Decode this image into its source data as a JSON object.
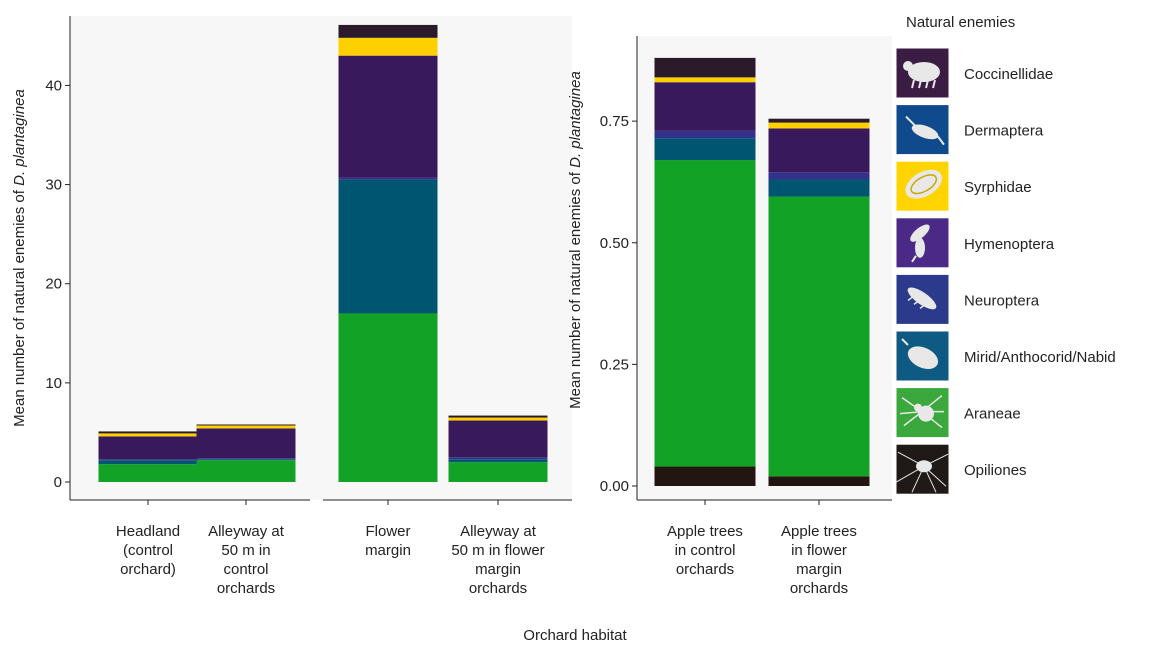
{
  "x_title": "Orchard habitat",
  "legend_title": "Natural enemies",
  "colors": {
    "Coccinellidae": "#2a1a2a",
    "Dermaptera": "#000000",
    "Syrphidae": "#ffd000",
    "Hymenoptera": "#38195c",
    "Neuroptera": "#34318a",
    "Mirid/Anthocorid/Nabid": "#005570",
    "Araneae": "#12a326",
    "Opiliones": "#231510"
  },
  "chart_data": [
    {
      "type": "bar",
      "stacked": true,
      "ylabel": "Mean number of natural enemies of ",
      "ylabel_italic": "D. plantaginea",
      "ylim": [
        0,
        47
      ],
      "yticks": [
        "0",
        "10",
        "20",
        "30",
        "40"
      ],
      "ytick_values": [
        0,
        10,
        20,
        30,
        40
      ],
      "categories": [
        "Headland\n(control\norchard)",
        "Alleyway at\n50 m in\ncontrol\norchards",
        "Flower\nmargin",
        "Alleyway at\n50 m in flower\nmargin\norchards"
      ],
      "series": [
        {
          "name": "Opiliones",
          "values": [
            0,
            0,
            0,
            0
          ]
        },
        {
          "name": "Araneae",
          "values": [
            1.8,
            2.2,
            17.0,
            2.0
          ]
        },
        {
          "name": "Mirid/Anthocorid/Nabid",
          "values": [
            0.4,
            0.1,
            13.5,
            0.3
          ]
        },
        {
          "name": "Neuroptera",
          "values": [
            0.1,
            0.1,
            0.2,
            0.2
          ]
        },
        {
          "name": "Hymenoptera",
          "values": [
            2.3,
            3.0,
            12.3,
            3.7
          ]
        },
        {
          "name": "Syrphidae",
          "values": [
            0.3,
            0.3,
            1.8,
            0.3
          ]
        },
        {
          "name": "Dermaptera",
          "values": [
            0,
            0,
            0,
            0
          ]
        },
        {
          "name": "Coccinellidae",
          "values": [
            0.2,
            0.1,
            1.3,
            0.2
          ]
        }
      ]
    },
    {
      "type": "bar",
      "stacked": true,
      "ylabel": "Mean number of natural enemies of ",
      "ylabel_italic": "D. plantaginea",
      "ylim": [
        0,
        0.925
      ],
      "yticks": [
        "0.00",
        "0.25",
        "0.50",
        "0.75"
      ],
      "ytick_values": [
        0,
        0.25,
        0.5,
        0.75
      ],
      "categories": [
        "Apple trees\nin control\norchards",
        "Apple trees\nin flower\nmargin\norchards"
      ],
      "series": [
        {
          "name": "Opiliones",
          "values": [
            0.04,
            0.02
          ]
        },
        {
          "name": "Araneae",
          "values": [
            0.63,
            0.575
          ]
        },
        {
          "name": "Mirid/Anthocorid/Nabid",
          "values": [
            0.045,
            0.035
          ]
        },
        {
          "name": "Neuroptera",
          "values": [
            0.015,
            0.015
          ]
        },
        {
          "name": "Hymenoptera",
          "values": [
            0.1,
            0.09
          ]
        },
        {
          "name": "Syrphidae",
          "values": [
            0.01,
            0.012
          ]
        },
        {
          "name": "Dermaptera",
          "values": [
            0,
            0
          ]
        },
        {
          "name": "Coccinellidae",
          "values": [
            0.04,
            0.008
          ]
        }
      ]
    }
  ],
  "legend": [
    {
      "name": "Coccinellidae",
      "icon": "ladybird-icon",
      "bg": "#3b1d44"
    },
    {
      "name": "Dermaptera",
      "icon": "earwig-icon",
      "bg": "#0e4a8c"
    },
    {
      "name": "Syrphidae",
      "icon": "hoverfly-larva-icon",
      "bg": "#ffd400"
    },
    {
      "name": "Hymenoptera",
      "icon": "wasp-icon",
      "bg": "#4a2a86"
    },
    {
      "name": "Neuroptera",
      "icon": "lacewing-larva-icon",
      "bg": "#2b3a8a"
    },
    {
      "name": "Mirid/Anthocorid/Nabid",
      "icon": "bug-icon",
      "bg": "#0e5a82"
    },
    {
      "name": "Araneae",
      "icon": "spider-icon",
      "bg": "#3aa83c"
    },
    {
      "name": "Opiliones",
      "icon": "harvestman-icon",
      "bg": "#1f1a17"
    }
  ]
}
